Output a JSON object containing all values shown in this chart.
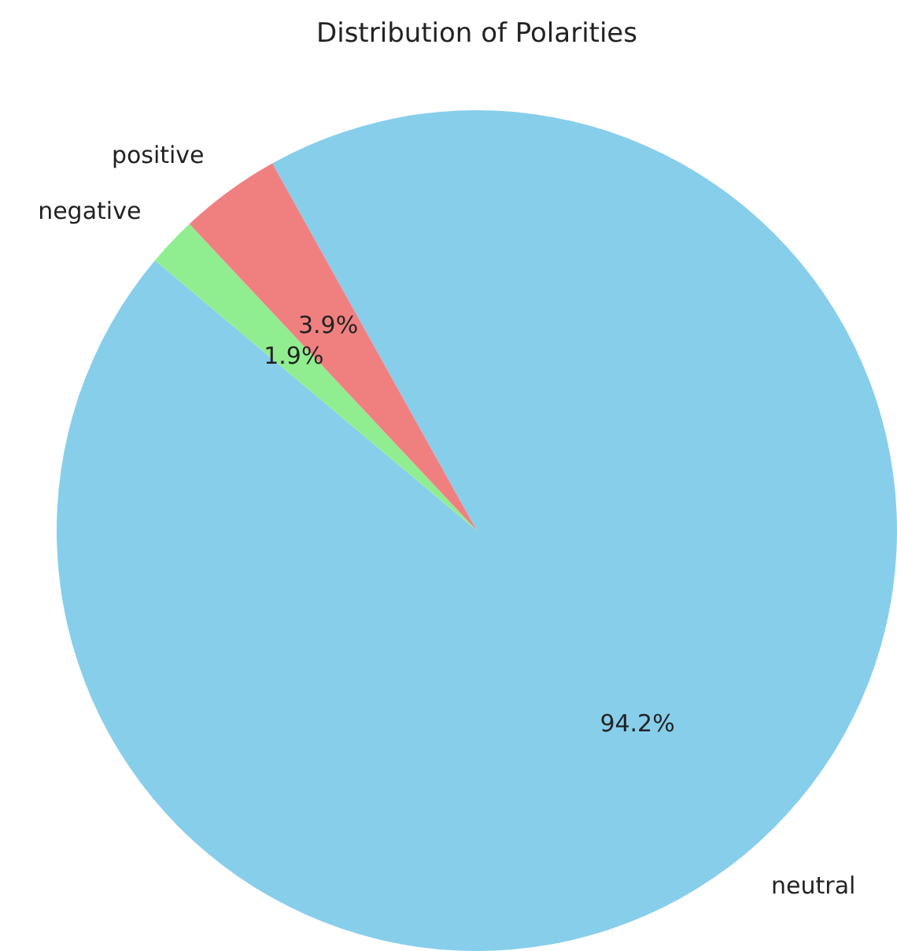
{
  "chart_data": {
    "type": "pie",
    "title": "Distribution of Polarities",
    "categories": [
      "neutral",
      "negative",
      "positive"
    ],
    "values": [
      94.2,
      1.9,
      3.9
    ],
    "colors": [
      "#87ceeb",
      "#90ee90",
      "#f08080"
    ],
    "value_labels": [
      "94.2%",
      "1.9%",
      "3.9%"
    ],
    "legend": false
  }
}
